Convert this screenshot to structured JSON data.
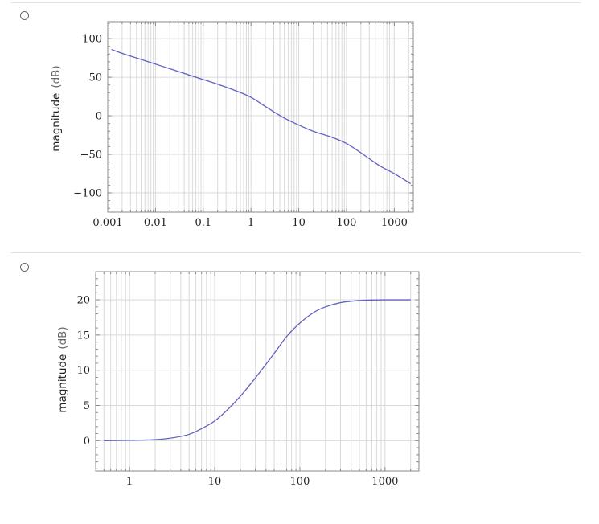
{
  "options": [
    {
      "label": ""
    },
    {
      "label": ""
    }
  ],
  "colors": {
    "curve": "#6262c0",
    "grid": "#dadada",
    "frame": "#8a8a8a",
    "rule": "#e2e2e2"
  },
  "chart_data": [
    {
      "type": "line",
      "title": "",
      "xlabel": "",
      "ylabel": "magnitude",
      "ylabel_unit": "(dB)",
      "x_scale": "log",
      "xlim": [
        0.001,
        2500
      ],
      "ylim": [
        -125,
        122
      ],
      "x_ticks": [
        0.001,
        0.01,
        0.1,
        1,
        10,
        100,
        1000
      ],
      "x_tick_labels": [
        "0.001",
        "0.01",
        "0.1",
        "1",
        "10",
        "100",
        "1000"
      ],
      "y_ticks": [
        100,
        50,
        0,
        -50,
        -100
      ],
      "y_tick_labels": [
        "100",
        "50",
        "0",
        "−50",
        "−100"
      ],
      "grid": true,
      "series": [
        {
          "x": [
            0.0012,
            0.002,
            0.005,
            0.01,
            0.02,
            0.05,
            0.1,
            0.2,
            0.5,
            1,
            2,
            5,
            10,
            20,
            50,
            100,
            200,
            500,
            1000,
            2200
          ],
          "y": [
            86,
            81,
            73,
            67,
            61,
            53,
            47,
            41,
            32,
            24,
            12,
            -3,
            -12,
            -20,
            -28,
            -36,
            -48,
            -65,
            -75,
            -88
          ]
        }
      ]
    },
    {
      "type": "line",
      "title": "",
      "xlabel": "",
      "ylabel": "magnitude",
      "ylabel_unit": "(dB)",
      "x_scale": "log",
      "xlim": [
        0.4,
        2500
      ],
      "ylim": [
        -4.3,
        24
      ],
      "x_ticks": [
        1,
        10,
        100,
        1000
      ],
      "x_tick_labels": [
        "1",
        "10",
        "100",
        "1000"
      ],
      "y_ticks": [
        20,
        15,
        10,
        5,
        0
      ],
      "y_tick_labels": [
        "20",
        "15",
        "10",
        "5",
        "0"
      ],
      "grid": true,
      "series": [
        {
          "x": [
            0.5,
            1,
            2,
            3,
            5,
            7,
            10,
            15,
            20,
            30,
            50,
            70,
            100,
            150,
            200,
            300,
            500,
            1000,
            2000
          ],
          "y": [
            0.0,
            0.05,
            0.15,
            0.35,
            0.9,
            1.7,
            2.8,
            4.7,
            6.3,
            8.9,
            12.4,
            14.8,
            16.7,
            18.3,
            19.0,
            19.6,
            19.9,
            20.0,
            20.0
          ]
        }
      ]
    }
  ]
}
